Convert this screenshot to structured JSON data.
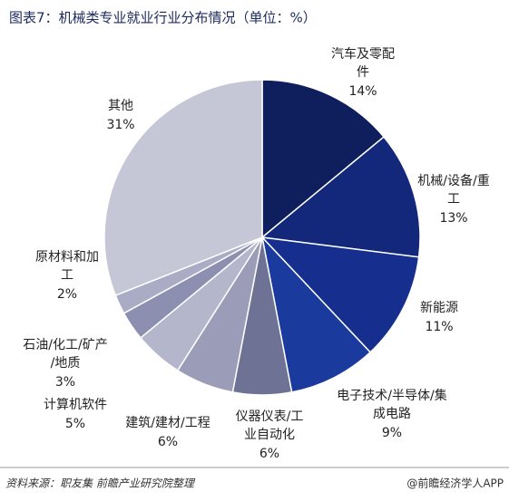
{
  "chart_data": {
    "type": "pie",
    "title": "图表7：机械类专业就业行业分布情况（单位：%）",
    "categories": [
      "汽车及零配件",
      "机械/设备/重工",
      "新能源",
      "电子技术/半导体/集成电路",
      "仪器仪表/工业自动化",
      "建筑/建材/工程",
      "计算机软件",
      "石油/化工/矿产/地质",
      "原材料和加工",
      "其他"
    ],
    "values": [
      14,
      13,
      11,
      9,
      6,
      6,
      5,
      3,
      2,
      31
    ],
    "value_labels": [
      "14%",
      "13%",
      "11%",
      "9%",
      "6%",
      "6%",
      "5%",
      "3%",
      "2%",
      "31%"
    ],
    "colors": [
      "#0f1f5e",
      "#13287a",
      "#162f8f",
      "#1a3a9e",
      "#6e7396",
      "#9a9cb8",
      "#b4b6cc",
      "#8c8fb0",
      "#a9acc4",
      "#c5c7d6"
    ],
    "source": "资料来源：职友集 前瞻产业研究院整理",
    "credit": "@前瞻经济学人APP"
  }
}
